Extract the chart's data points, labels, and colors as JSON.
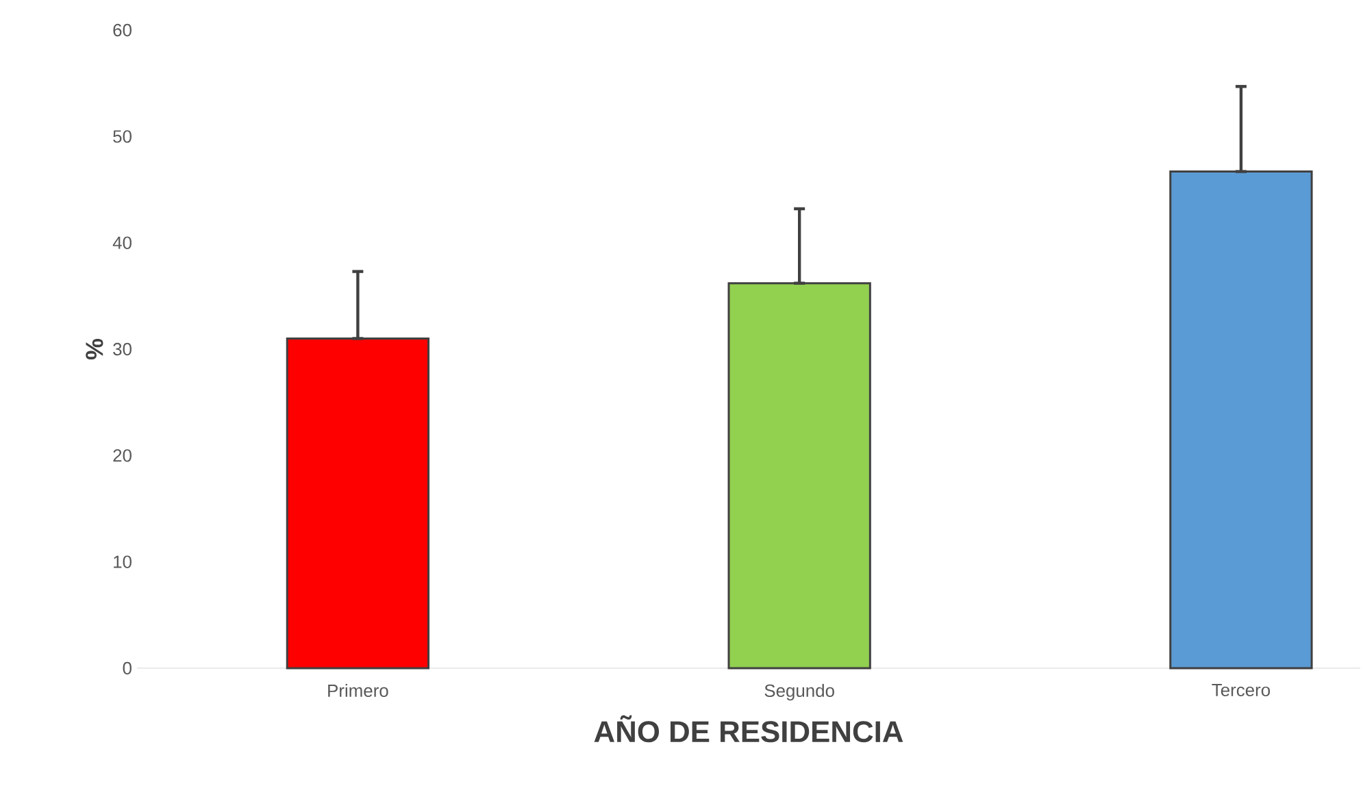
{
  "chart_data": {
    "type": "bar",
    "xlabel": "AÑO DE RESIDENCIA",
    "ylabel": "%",
    "categories": [
      "Primero",
      "Segundo",
      "Tercero"
    ],
    "values": [
      31,
      36.2,
      46.7
    ],
    "colors": [
      "#ff0000",
      "#92d050",
      "#5b9bd5"
    ],
    "errors": [
      [
        31,
        37.3
      ],
      [
        36.2,
        43.2
      ],
      [
        46.7,
        54.7
      ]
    ],
    "ylim": [
      0,
      60
    ],
    "yticks": [
      0,
      10,
      20,
      30,
      40,
      50,
      60
    ],
    "grid": false
  }
}
